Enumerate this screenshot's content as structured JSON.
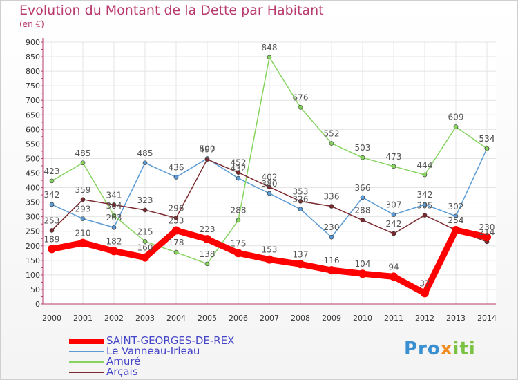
{
  "header": {
    "title": "Evolution du Montant de la Dette par Habitant",
    "unit": "(en €)"
  },
  "brand": {
    "part1": "Pro",
    "part2": "x",
    "part3": "iti"
  },
  "colors": {
    "axis": "#b83a6e",
    "grid": "#e4e4e4"
  },
  "chart_data": {
    "type": "line",
    "title": "Evolution du Montant de la Dette par Habitant",
    "ylabel": "(en €)",
    "xlabel": "",
    "x": [
      "2000",
      "2001",
      "2002",
      "2003",
      "2004",
      "2005",
      "2006",
      "2007",
      "2008",
      "2009",
      "2010",
      "2011",
      "2012",
      "2013",
      "2014"
    ],
    "yticks": [
      0,
      50,
      100,
      150,
      200,
      250,
      300,
      350,
      400,
      450,
      500,
      550,
      600,
      650,
      700,
      750,
      800,
      850,
      900
    ],
    "ylim": [
      0,
      900
    ],
    "grid": true,
    "legend_position": "bottom-left",
    "series": [
      {
        "name": "Le Vanneau-Irleau",
        "color": "#5b9bd5",
        "values": [
          342,
          293,
          263,
          485,
          436,
          500,
          432,
          380,
          326,
          230,
          366,
          307,
          342,
          302,
          534
        ],
        "labels": [
          "342",
          "293",
          "263",
          "485",
          "436",
          "500",
          "432",
          "380",
          "326",
          "230",
          "366",
          "307",
          "342",
          "302",
          "534"
        ]
      },
      {
        "name": "Amuré",
        "color": "#86d45e",
        "values": [
          423,
          485,
          304,
          215,
          178,
          138,
          288,
          848,
          676,
          552,
          503,
          473,
          444,
          609,
          534
        ],
        "labels": [
          "423",
          "485",
          "304",
          "215",
          "178",
          "138",
          "288",
          "848",
          "676",
          "552",
          "503",
          "473",
          "444",
          "609",
          "534"
        ]
      },
      {
        "name": "Arçais",
        "color": "#7a2a2f",
        "values": [
          253,
          359,
          341,
          323,
          296,
          497,
          452,
          402,
          353,
          336,
          288,
          242,
          305,
          254,
          214
        ],
        "labels": [
          "253",
          "359",
          "341",
          "323",
          "296",
          "497",
          "452",
          "402",
          "353",
          "336",
          "288",
          "242",
          "305",
          "254",
          "214"
        ]
      },
      {
        "name": "SAINT-GEORGES-DE-REX",
        "color": "#ff0000",
        "values": [
          189,
          210,
          182,
          160,
          253,
          223,
          175,
          153,
          137,
          116,
          104,
          94,
          37,
          254,
          230
        ],
        "labels": [
          "189",
          "210",
          "182",
          "160",
          "253",
          "223",
          "175",
          "153",
          "137",
          "116",
          "104",
          "94",
          "37",
          "254",
          "230"
        ]
      }
    ]
  }
}
